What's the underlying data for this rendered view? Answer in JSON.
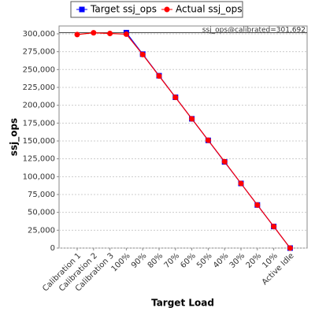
{
  "chart_data": {
    "type": "line",
    "x_label": "Target Load",
    "y_label": "ssj_ops",
    "categories": [
      "Calibration 1",
      "Calibration 2",
      "Calibration 3",
      "100%",
      "90%",
      "80%",
      "70%",
      "60%",
      "50%",
      "40%",
      "30%",
      "20%",
      "10%",
      "Active Idle"
    ],
    "series": [
      {
        "name": "Target ssj_ops",
        "color": "#0000ff",
        "marker": "square",
        "values": [
          null,
          null,
          null,
          301692,
          271523,
          241354,
          211184,
          181015,
          150846,
          120677,
          90508,
          60338,
          30169,
          0
        ]
      },
      {
        "name": "Actual ssj_ops",
        "color": "#ff0000",
        "marker": "circle",
        "values": [
          299000,
          301500,
          300500,
          299500,
          271000,
          241000,
          211000,
          181000,
          151000,
          121000,
          90500,
          60300,
          30200,
          0
        ]
      }
    ],
    "calibration_line": 301692,
    "annotation": "ssj_ops@calibrated=301,692",
    "ylim": [
      0,
      311000
    ],
    "yticks": [
      {
        "value": 0,
        "label": "0"
      },
      {
        "value": 25000,
        "label": "25,000"
      },
      {
        "value": 50000,
        "label": "50,000"
      },
      {
        "value": 75000,
        "label": "75,000"
      },
      {
        "value": 100000,
        "label": "100,000"
      },
      {
        "value": 125000,
        "label": "125,000"
      },
      {
        "value": 150000,
        "label": "150,000"
      },
      {
        "value": 175000,
        "label": "175,000"
      },
      {
        "value": 200000,
        "label": "200,000"
      },
      {
        "value": 225000,
        "label": "225,000"
      },
      {
        "value": 250000,
        "label": "250,000"
      },
      {
        "value": 275000,
        "label": "275,000"
      },
      {
        "value": 300000,
        "label": "300,000"
      }
    ],
    "grid": true,
    "legend": "top"
  }
}
